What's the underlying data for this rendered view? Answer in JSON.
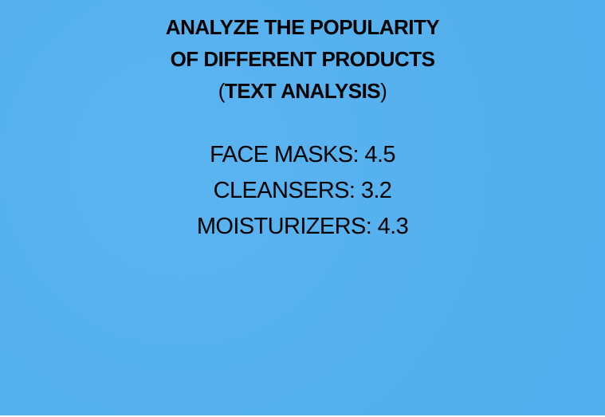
{
  "background_color": "#53b1f0",
  "title": {
    "line1": "ANALYZE THE POPULARITY",
    "line2": "OF DIFFERENT PRODUCTS",
    "paren_open": "(",
    "line3_bold": "TEXT ANALYSIS",
    "paren_close": ")"
  },
  "products": [
    {
      "label": "FACE MASKS: 4.5"
    },
    {
      "label": "CLEANSERS: 3.2"
    },
    {
      "label": "MOISTURIZERS: 4.3"
    }
  ]
}
